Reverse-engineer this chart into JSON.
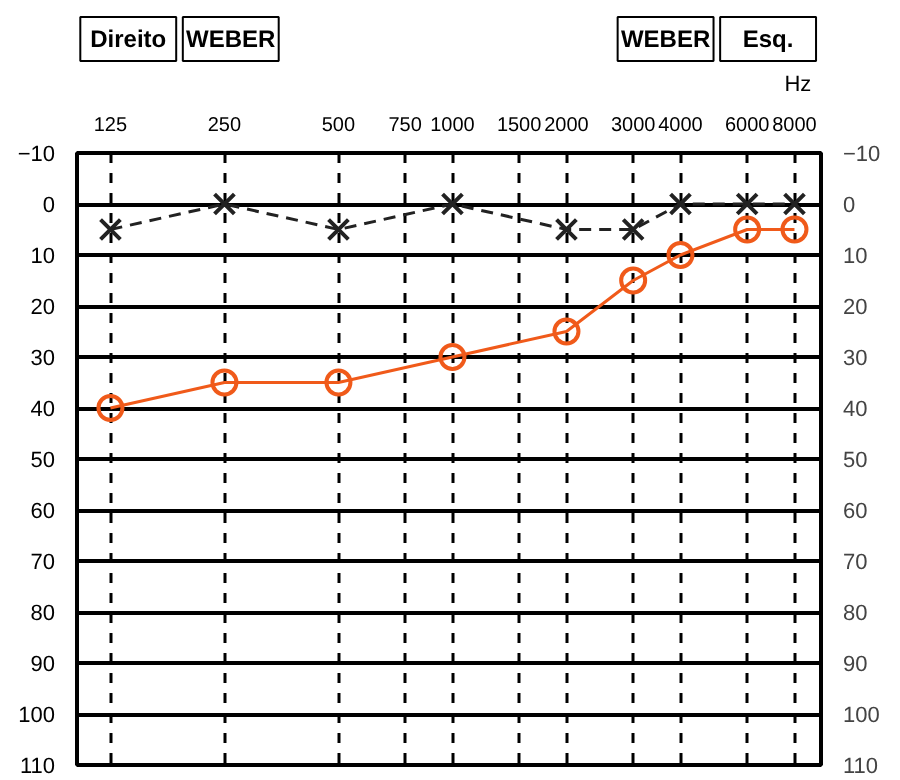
{
  "chart_data": {
    "type": "line",
    "log": "x",
    "xlabel": "Hz",
    "annotations": [
      "Direito",
      "WEBER",
      "WEBER",
      "Esq."
    ],
    "x": [
      125,
      250,
      500,
      1000,
      2000,
      3000,
      4000,
      6000,
      8000
    ],
    "xlim": [
      102,
      9400
    ],
    "xticks": [
      125,
      250,
      500,
      750,
      1000,
      1500,
      2000,
      3000,
      4000,
      6000,
      8000
    ],
    "ylim": [
      110,
      -10
    ],
    "yticks": [
      -10,
      0,
      10,
      20,
      30,
      40,
      50,
      60,
      70,
      80,
      90,
      100,
      110
    ],
    "y2lim": [
      110,
      -10
    ],
    "y2ticks": [
      -10,
      0,
      10,
      20,
      30,
      40,
      50,
      60,
      70,
      80,
      90,
      100,
      110
    ],
    "grid": true,
    "series": [
      {
        "color": "#222222",
        "marker": "cross",
        "line_style": "dashed",
        "values": [
          5,
          0,
          5,
          0,
          5,
          5,
          0,
          0,
          0
        ]
      },
      {
        "color": "#f05a1a",
        "marker": "circle",
        "line_style": "solid",
        "values": [
          40,
          35,
          35,
          30,
          25,
          15,
          10,
          5,
          5
        ]
      }
    ]
  }
}
